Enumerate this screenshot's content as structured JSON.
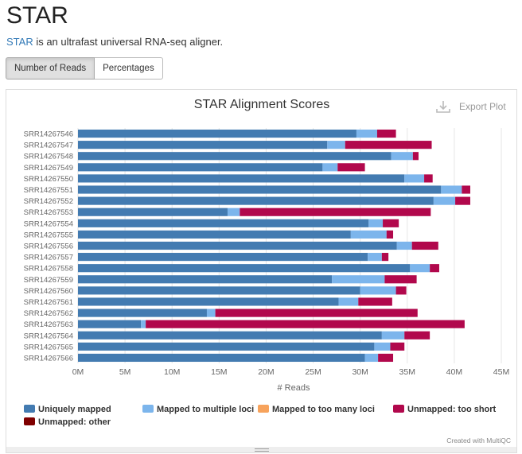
{
  "page": {
    "title": "STAR",
    "intro_link": "STAR",
    "intro_text": " is an ultrafast universal RNA-seq aligner."
  },
  "toggle": {
    "counts_label": "Number of Reads",
    "percent_label": "Percentages",
    "active": "counts"
  },
  "export": {
    "label": "Export Plot",
    "icon": "download-icon"
  },
  "credit": "Created with MultiQC",
  "colors": {
    "uniquely_mapped": "#437bb1",
    "mapped_multiple": "#7cb5ec",
    "too_many_loci": "#f7a35c",
    "too_short": "#b1084c",
    "other": "#7f0000"
  },
  "chart_data": {
    "type": "bar",
    "orientation": "horizontal",
    "stacked": true,
    "title": "STAR Alignment Scores",
    "xlabel": "# Reads",
    "xlim": [
      0,
      45000000
    ],
    "x_ticks": [
      "0M",
      "5M",
      "10M",
      "15M",
      "20M",
      "25M",
      "30M",
      "35M",
      "40M",
      "45M"
    ],
    "grid": true,
    "legend_position": "bottom-left",
    "categories": [
      "SRR14267546",
      "SRR14267547",
      "SRR14267548",
      "SRR14267549",
      "SRR14267550",
      "SRR14267551",
      "SRR14267552",
      "SRR14267553",
      "SRR14267554",
      "SRR14267555",
      "SRR14267556",
      "SRR14267557",
      "SRR14267558",
      "SRR14267559",
      "SRR14267560",
      "SRR14267561",
      "SRR14267562",
      "SRR14267563",
      "SRR14267564",
      "SRR14267565",
      "SRR14267566"
    ],
    "series": [
      {
        "name": "Uniquely mapped",
        "color": "#437bb1",
        "values": [
          29600000,
          26500000,
          33300000,
          26000000,
          34700000,
          38600000,
          37800000,
          15900000,
          30900000,
          29000000,
          33900000,
          30800000,
          35300000,
          27000000,
          30000000,
          27700000,
          13700000,
          6700000,
          32300000,
          31500000,
          30500000
        ]
      },
      {
        "name": "Mapped to multiple loci",
        "color": "#7cb5ec",
        "values": [
          2200000,
          1900000,
          2300000,
          1600000,
          2100000,
          2200000,
          2300000,
          1300000,
          1500000,
          3800000,
          1600000,
          1500000,
          2100000,
          5600000,
          3800000,
          2100000,
          900000,
          500000,
          2400000,
          1700000,
          1400000
        ]
      },
      {
        "name": "Mapped to too many loci",
        "color": "#f7a35c",
        "values": [
          0,
          0,
          0,
          0,
          0,
          0,
          0,
          0,
          0,
          0,
          0,
          0,
          0,
          0,
          0,
          0,
          0,
          0,
          0,
          0,
          0
        ]
      },
      {
        "name": "Unmapped: too short",
        "color": "#b1084c",
        "values": [
          2000000,
          9200000,
          600000,
          2900000,
          900000,
          900000,
          1600000,
          20300000,
          1700000,
          700000,
          2800000,
          700000,
          1000000,
          3400000,
          1100000,
          3600000,
          21500000,
          33900000,
          2700000,
          1500000,
          1600000
        ]
      },
      {
        "name": "Unmapped: other",
        "color": "#7f0000",
        "values": [
          0,
          0,
          0,
          0,
          0,
          0,
          0,
          0,
          0,
          0,
          0,
          0,
          0,
          0,
          0,
          0,
          0,
          0,
          0,
          0,
          0
        ]
      }
    ]
  }
}
